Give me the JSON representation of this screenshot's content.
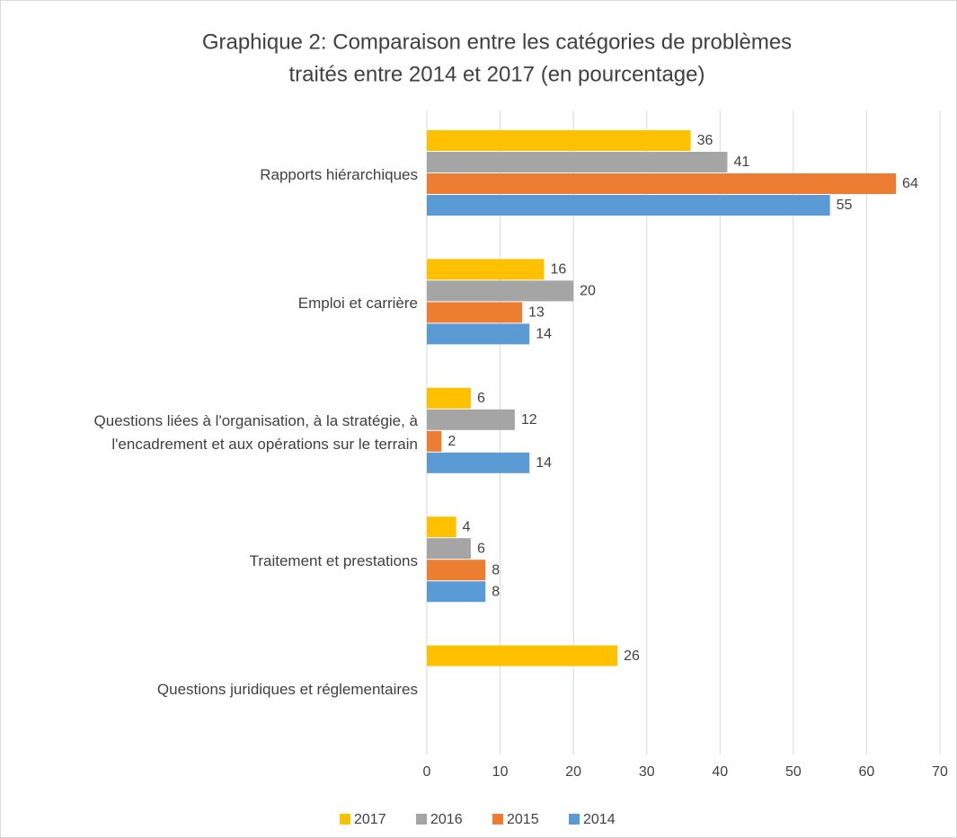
{
  "chart_data": {
    "type": "barh",
    "title": [
      "Graphique 2: Comparaison entre les catégories de problèmes",
      "traités entre 2014 et 2017 (en pourcentage)"
    ],
    "categories": [
      "Rapports hiérarchiques",
      "Emploi et carrière",
      "Questions liées à l'organisation, à la stratégie, à l'encadrement et aux opérations sur le terrain",
      "Traitement et prestations",
      "Questions juridiques et réglementaires"
    ],
    "series": [
      {
        "name": "2017",
        "color": "#FFC000",
        "values": [
          36,
          16,
          6,
          4,
          26
        ]
      },
      {
        "name": "2016",
        "color": "#A5A5A5",
        "values": [
          41,
          20,
          12,
          6,
          null
        ]
      },
      {
        "name": "2015",
        "color": "#ED7D31",
        "values": [
          64,
          13,
          2,
          8,
          null
        ]
      },
      {
        "name": "2014",
        "color": "#5B9BD5",
        "values": [
          55,
          14,
          14,
          8,
          null
        ]
      }
    ],
    "xlim": [
      0,
      70
    ],
    "xticks": [
      0,
      10,
      20,
      30,
      40,
      50,
      60,
      70
    ],
    "grid": true,
    "legend": "bottom"
  }
}
